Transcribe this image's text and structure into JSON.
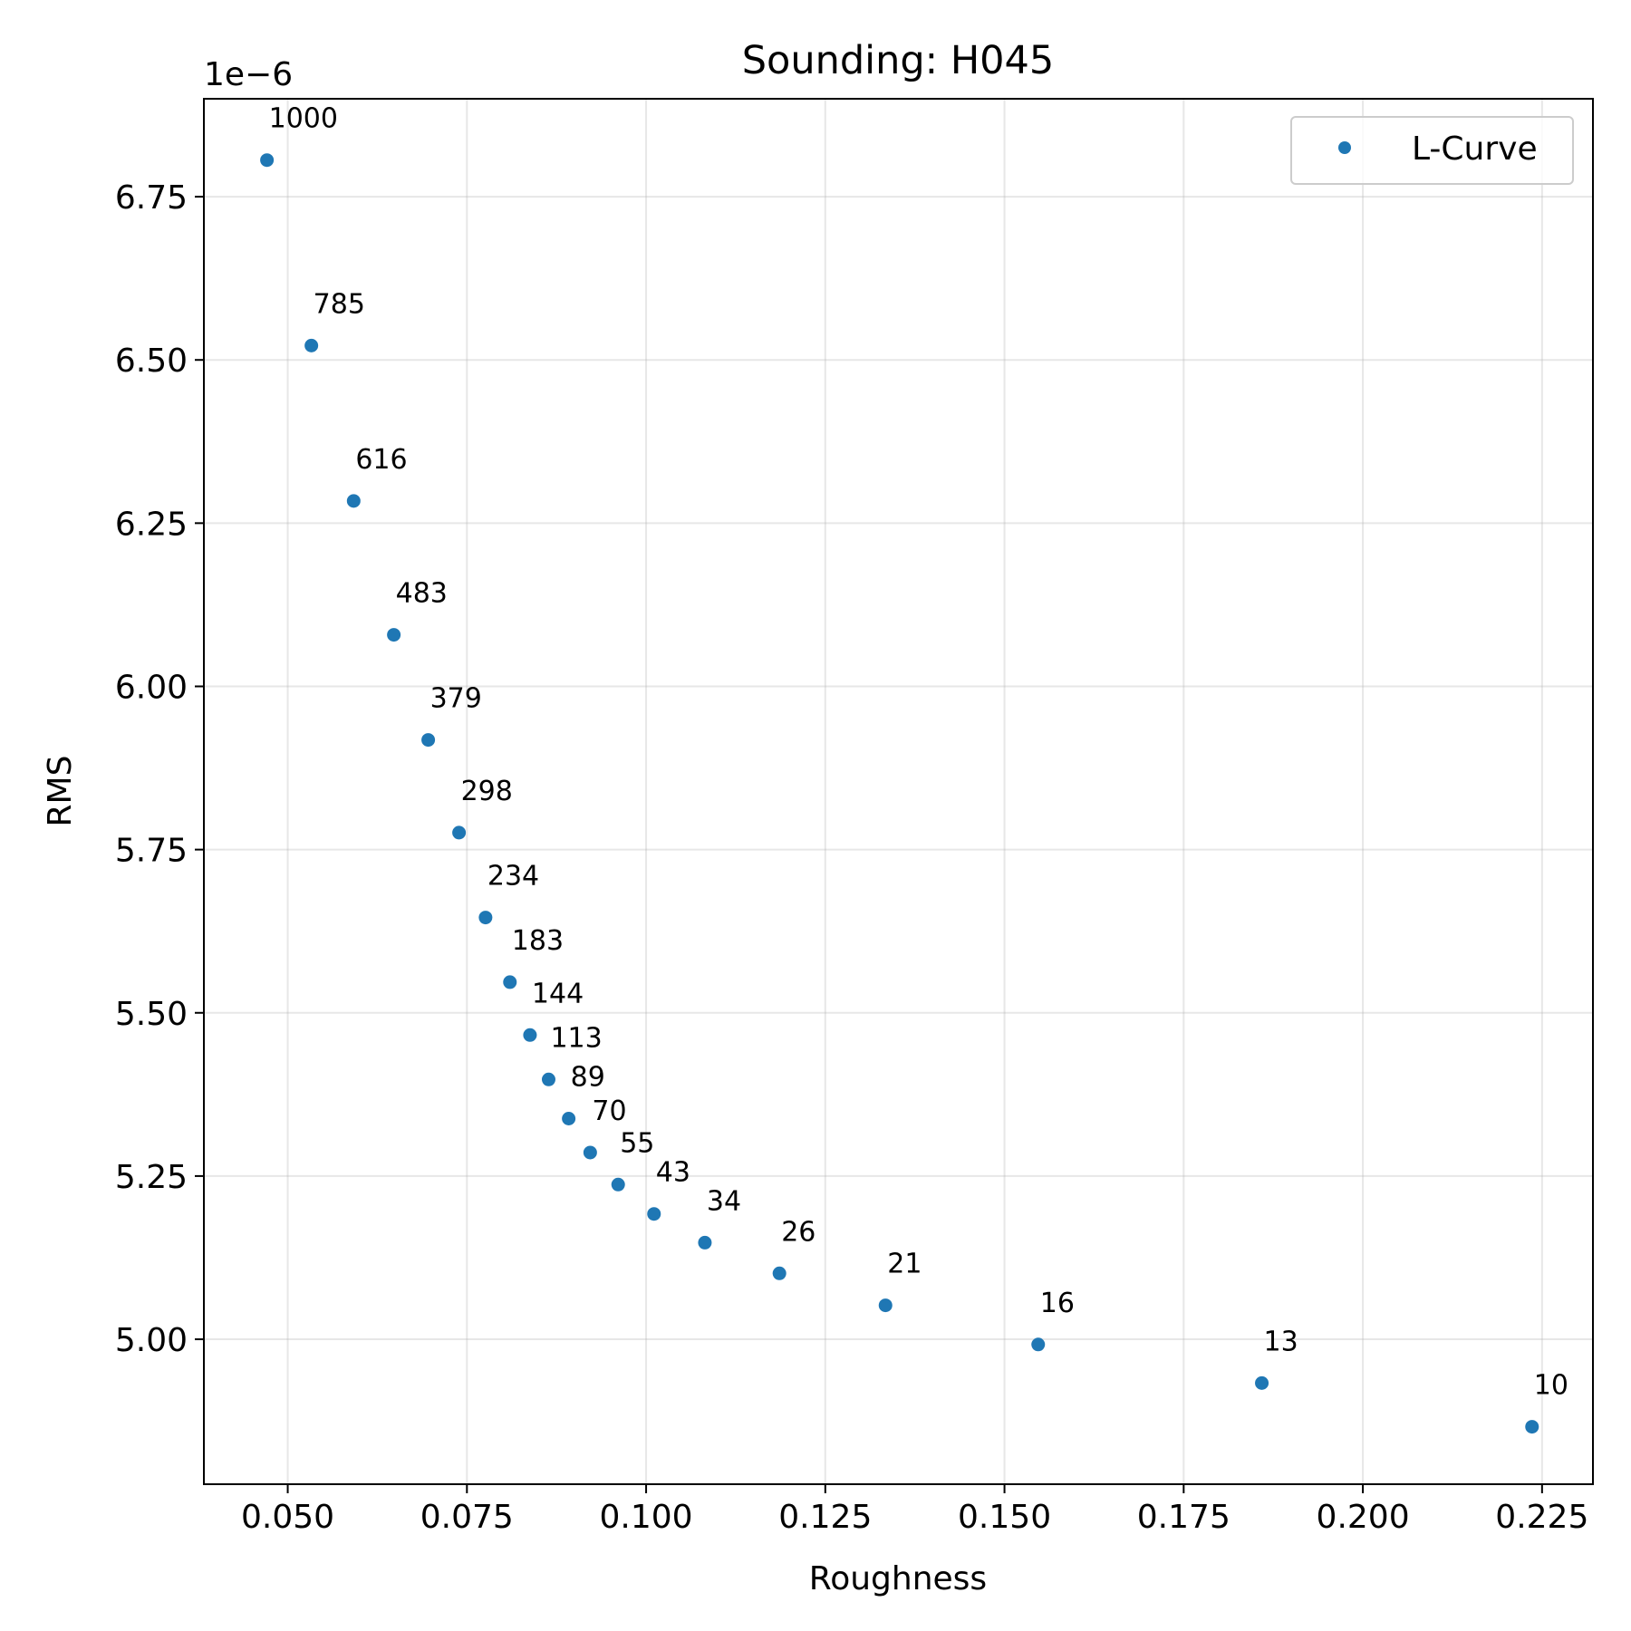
{
  "chart_data": {
    "type": "scatter",
    "title": "Sounding: H045",
    "xlabel": "Roughness",
    "ylabel": "RMS",
    "y_offset_text": "1e−6",
    "xlim": [
      0.0383,
      0.2321
    ],
    "ylim": [
      4.778,
      6.9
    ],
    "grid": true,
    "legend_position": "top-right",
    "x_ticks": [
      {
        "value": 0.05,
        "label": "0.050"
      },
      {
        "value": 0.075,
        "label": "0.075"
      },
      {
        "value": 0.1,
        "label": "0.100"
      },
      {
        "value": 0.125,
        "label": "0.125"
      },
      {
        "value": 0.15,
        "label": "0.150"
      },
      {
        "value": 0.175,
        "label": "0.175"
      },
      {
        "value": 0.2,
        "label": "0.200"
      },
      {
        "value": 0.225,
        "label": "0.225"
      }
    ],
    "y_ticks": [
      {
        "value": 5.0,
        "label": "5.00"
      },
      {
        "value": 5.25,
        "label": "5.25"
      },
      {
        "value": 5.5,
        "label": "5.50"
      },
      {
        "value": 5.75,
        "label": "5.75"
      },
      {
        "value": 6.0,
        "label": "6.00"
      },
      {
        "value": 6.25,
        "label": "6.25"
      },
      {
        "value": 6.5,
        "label": "6.50"
      },
      {
        "value": 6.75,
        "label": "6.75"
      }
    ],
    "series": [
      {
        "name": "L-Curve",
        "color": "#1f77b4",
        "points": [
          {
            "x": 0.0471,
            "y": 6.806,
            "label": "1000"
          },
          {
            "x": 0.0533,
            "y": 6.522,
            "label": "785"
          },
          {
            "x": 0.0592,
            "y": 6.284,
            "label": "616"
          },
          {
            "x": 0.0648,
            "y": 6.079,
            "label": "483"
          },
          {
            "x": 0.0696,
            "y": 5.918,
            "label": "379"
          },
          {
            "x": 0.0739,
            "y": 5.776,
            "label": "298"
          },
          {
            "x": 0.0776,
            "y": 5.646,
            "label": "234"
          },
          {
            "x": 0.081,
            "y": 5.547,
            "label": "183"
          },
          {
            "x": 0.0838,
            "y": 5.466,
            "label": "144"
          },
          {
            "x": 0.0864,
            "y": 5.398,
            "label": "113"
          },
          {
            "x": 0.0892,
            "y": 5.338,
            "label": "89"
          },
          {
            "x": 0.0922,
            "y": 5.286,
            "label": "70"
          },
          {
            "x": 0.0961,
            "y": 5.237,
            "label": "55"
          },
          {
            "x": 0.1011,
            "y": 5.192,
            "label": "43"
          },
          {
            "x": 0.1082,
            "y": 5.148,
            "label": "34"
          },
          {
            "x": 0.1186,
            "y": 5.101,
            "label": "26"
          },
          {
            "x": 0.1334,
            "y": 5.052,
            "label": "21"
          },
          {
            "x": 0.1547,
            "y": 4.992,
            "label": "16"
          },
          {
            "x": 0.1859,
            "y": 4.933,
            "label": "13"
          },
          {
            "x": 0.2236,
            "y": 4.866,
            "label": "10"
          }
        ]
      }
    ]
  }
}
